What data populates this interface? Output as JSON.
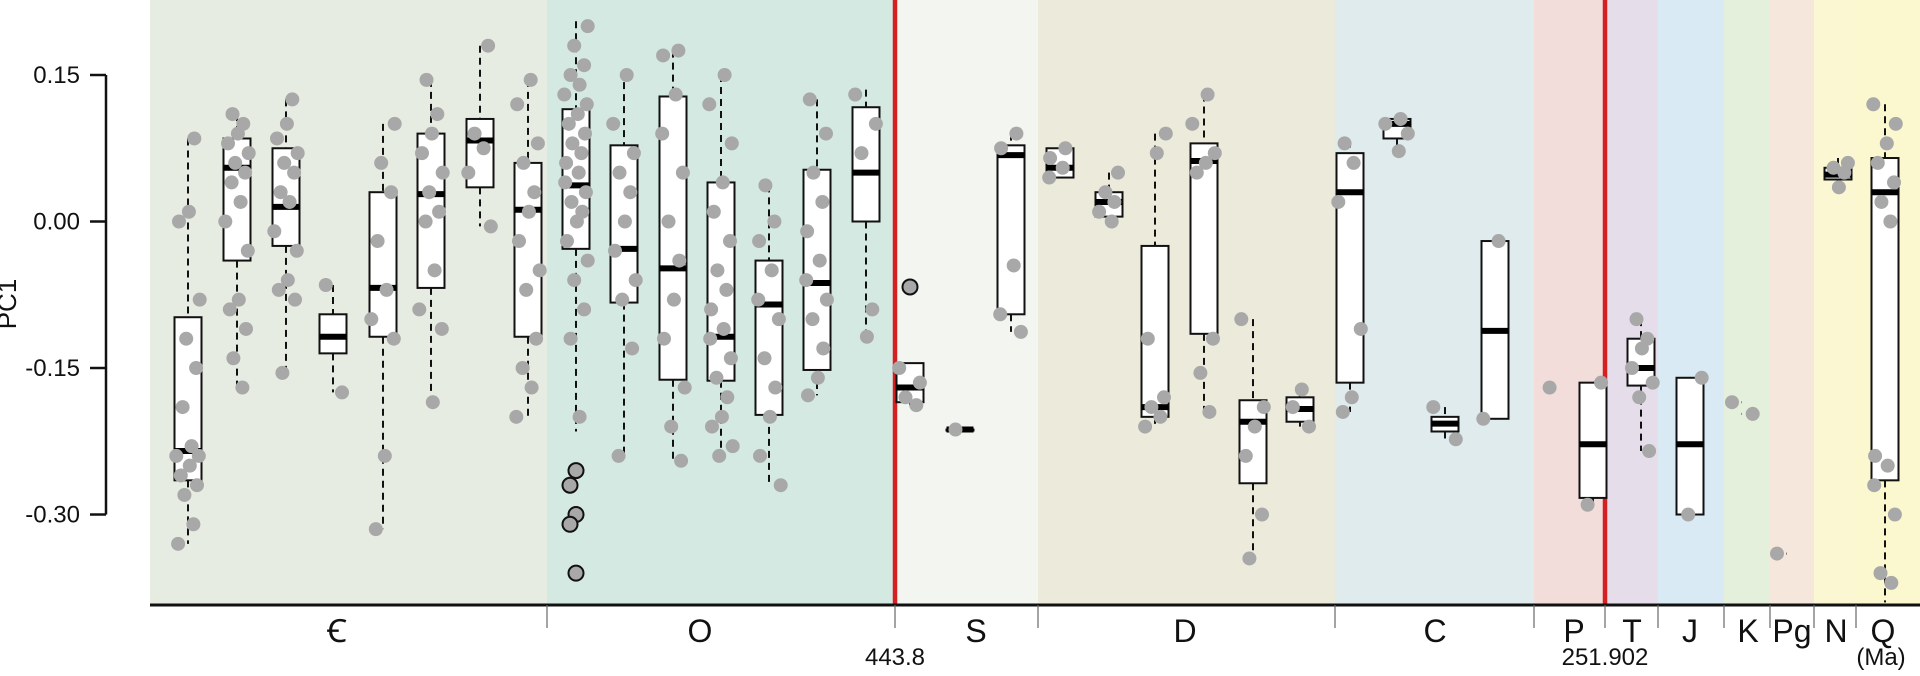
{
  "chart_data": {
    "type": "box",
    "ylabel": "PC1",
    "ylim": [
      -0.39,
      0.225
    ],
    "yticks": [
      {
        "v": 0.15,
        "label": "0.15"
      },
      {
        "v": 0.0,
        "label": "0.00"
      },
      {
        "v": -0.15,
        "label": "-0.15"
      },
      {
        "v": -0.3,
        "label": "-0.30"
      }
    ],
    "time_axis_unit": "(Ma)",
    "periods": [
      {
        "label": "Ꞓ",
        "color": "#e7ece2"
      },
      {
        "label": "O",
        "color": "#d5e9e3"
      },
      {
        "label": "S",
        "color": "#f3f5f1"
      },
      {
        "label": "D",
        "color": "#ecebdb"
      },
      {
        "label": "C",
        "color": "#e0ebee"
      },
      {
        "label": "P",
        "color": "#f2dddb"
      },
      {
        "label": "T",
        "color": "#e5deea"
      },
      {
        "label": "J",
        "color": "#d9eaf4"
      },
      {
        "label": "K",
        "color": "#e5f0dc"
      },
      {
        "label": "Pg",
        "color": "#f6e7dc"
      },
      {
        "label": "N",
        "color": "#fbf7d2"
      },
      {
        "label": "Q",
        "color": "#fbf7cf"
      }
    ],
    "boundaries": [
      {
        "label": "443.8",
        "after": "O",
        "color": "#d42020"
      },
      {
        "label": "251.902",
        "after": "P",
        "color": "#d42020"
      }
    ],
    "boxes": [
      {
        "whisker": [
          -0.33,
          0.085
        ],
        "q1": -0.265,
        "median": -0.235,
        "q3": -0.098,
        "points": [
          -0.33,
          -0.31,
          -0.28,
          -0.27,
          -0.26,
          -0.25,
          -0.24,
          -0.24,
          -0.23,
          -0.19,
          -0.15,
          -0.12,
          -0.08,
          0.0,
          0.01,
          0.085
        ]
      },
      {
        "whisker": [
          -0.17,
          0.11
        ],
        "q1": -0.04,
        "median": 0.055,
        "q3": 0.085,
        "points": [
          -0.17,
          -0.14,
          -0.11,
          -0.09,
          -0.08,
          -0.03,
          0.0,
          0.02,
          0.04,
          0.05,
          0.06,
          0.07,
          0.08,
          0.09,
          0.1,
          0.11
        ]
      },
      {
        "whisker": [
          -0.155,
          0.125
        ],
        "q1": -0.025,
        "median": 0.015,
        "q3": 0.075,
        "points": [
          -0.155,
          -0.08,
          -0.07,
          -0.06,
          -0.03,
          -0.01,
          0.02,
          0.03,
          0.05,
          0.06,
          0.07,
          0.085,
          0.1,
          0.125
        ]
      },
      {
        "whisker": [
          -0.175,
          -0.065
        ],
        "q1": -0.135,
        "median": -0.118,
        "q3": -0.095,
        "points": [
          -0.175,
          -0.065
        ]
      },
      {
        "whisker": [
          -0.315,
          0.1
        ],
        "q1": -0.118,
        "median": -0.068,
        "q3": 0.03,
        "points": [
          -0.315,
          -0.24,
          -0.12,
          -0.1,
          -0.07,
          -0.02,
          0.03,
          0.06,
          0.1
        ]
      },
      {
        "whisker": [
          -0.185,
          0.145
        ],
        "q1": -0.068,
        "median": 0.028,
        "q3": 0.09,
        "points": [
          -0.185,
          -0.11,
          -0.09,
          -0.05,
          0.0,
          0.01,
          0.03,
          0.05,
          0.07,
          0.09,
          0.11,
          0.145
        ]
      },
      {
        "whisker": [
          -0.005,
          0.18
        ],
        "q1": 0.035,
        "median": 0.083,
        "q3": 0.105,
        "points": [
          -0.005,
          0.05,
          0.075,
          0.09,
          0.18
        ]
      },
      {
        "whisker": [
          -0.2,
          0.145
        ],
        "q1": -0.118,
        "median": 0.012,
        "q3": 0.06,
        "points": [
          -0.2,
          -0.17,
          -0.15,
          -0.12,
          -0.07,
          -0.05,
          -0.02,
          0.01,
          0.03,
          0.06,
          0.08,
          0.12,
          0.145
        ]
      },
      {
        "whisker": [
          -0.215,
          0.205
        ],
        "q1": -0.028,
        "median": 0.037,
        "q3": 0.115,
        "points": [
          -0.2,
          -0.12,
          -0.09,
          -0.06,
          -0.04,
          -0.02,
          0.0,
          0.01,
          0.02,
          0.03,
          0.04,
          0.05,
          0.06,
          0.07,
          0.08,
          0.09,
          0.1,
          0.11,
          0.12,
          0.13,
          0.14,
          0.15,
          0.16,
          0.18,
          0.2
        ],
        "outliers": [
          -0.255,
          -0.27,
          -0.3,
          -0.31,
          -0.36
        ]
      },
      {
        "whisker": [
          -0.24,
          0.155
        ],
        "q1": -0.083,
        "median": -0.028,
        "q3": 0.078,
        "points": [
          -0.24,
          -0.13,
          -0.08,
          -0.06,
          -0.03,
          0.0,
          0.03,
          0.05,
          0.07,
          0.1,
          0.15
        ]
      },
      {
        "whisker": [
          -0.245,
          0.175
        ],
        "q1": -0.162,
        "median": -0.048,
        "q3": 0.128,
        "points": [
          -0.245,
          -0.21,
          -0.17,
          -0.12,
          -0.08,
          -0.04,
          0.0,
          0.05,
          0.09,
          0.13,
          0.17,
          0.175
        ]
      },
      {
        "whisker": [
          -0.24,
          0.15
        ],
        "q1": -0.163,
        "median": -0.118,
        "q3": 0.04,
        "points": [
          -0.24,
          -0.23,
          -0.21,
          -0.2,
          -0.18,
          -0.16,
          -0.14,
          -0.12,
          -0.11,
          -0.09,
          -0.07,
          -0.05,
          -0.02,
          0.01,
          0.04,
          0.08,
          0.12,
          0.15
        ]
      },
      {
        "whisker": [
          -0.27,
          0.037
        ],
        "q1": -0.198,
        "median": -0.085,
        "q3": -0.04,
        "points": [
          -0.27,
          -0.24,
          -0.2,
          -0.17,
          -0.14,
          -0.1,
          -0.08,
          -0.05,
          -0.02,
          0.0,
          0.037
        ]
      },
      {
        "whisker": [
          -0.178,
          0.125
        ],
        "q1": -0.152,
        "median": -0.063,
        "q3": 0.053,
        "points": [
          -0.178,
          -0.16,
          -0.13,
          -0.1,
          -0.08,
          -0.06,
          -0.04,
          -0.01,
          0.02,
          0.05,
          0.09,
          0.125
        ]
      },
      {
        "whisker": [
          -0.118,
          0.135
        ],
        "q1": 0.0,
        "median": 0.05,
        "q3": 0.117,
        "points": [
          -0.118,
          -0.09,
          0.07,
          0.1,
          0.13
        ]
      },
      {
        "whisker": [
          -0.188,
          -0.145
        ],
        "q1": -0.185,
        "median": -0.17,
        "q3": -0.145,
        "points": [
          -0.188,
          -0.18,
          -0.165,
          -0.15
        ],
        "outliers": [
          -0.067
        ]
      },
      {
        "whisker": [
          -0.213,
          -0.213
        ],
        "q1": -0.213,
        "median": -0.213,
        "q3": -0.213,
        "points": [
          -0.213
        ]
      },
      {
        "whisker": [
          -0.113,
          0.09
        ],
        "q1": -0.095,
        "median": 0.068,
        "q3": 0.078,
        "points": [
          -0.113,
          -0.095,
          -0.045,
          0.075,
          0.09
        ]
      },
      {
        "whisker": [
          0.045,
          0.075
        ],
        "q1": 0.045,
        "median": 0.055,
        "q3": 0.075,
        "points": [
          0.045,
          0.055,
          0.065,
          0.075
        ]
      },
      {
        "whisker": [
          0.0,
          0.05
        ],
        "q1": 0.005,
        "median": 0.02,
        "q3": 0.03,
        "points": [
          0.0,
          0.01,
          0.02,
          0.03,
          0.05
        ]
      },
      {
        "whisker": [
          -0.21,
          0.09
        ],
        "q1": -0.2,
        "median": -0.19,
        "q3": -0.025,
        "points": [
          -0.21,
          -0.2,
          -0.19,
          -0.18,
          -0.12,
          0.07,
          0.09
        ]
      },
      {
        "whisker": [
          -0.195,
          0.13
        ],
        "q1": -0.115,
        "median": 0.062,
        "q3": 0.08,
        "points": [
          -0.195,
          -0.155,
          -0.12,
          0.05,
          0.06,
          0.07,
          0.1,
          0.13
        ]
      },
      {
        "whisker": [
          -0.345,
          -0.1
        ],
        "q1": -0.268,
        "median": -0.205,
        "q3": -0.183,
        "points": [
          -0.345,
          -0.3,
          -0.24,
          -0.21,
          -0.19,
          -0.1
        ]
      },
      {
        "whisker": [
          -0.21,
          -0.172
        ],
        "q1": -0.205,
        "median": -0.192,
        "q3": -0.18,
        "points": [
          -0.21,
          -0.19,
          -0.172
        ]
      },
      {
        "whisker": [
          -0.195,
          0.083
        ],
        "q1": -0.165,
        "median": 0.03,
        "q3": 0.07,
        "points": [
          -0.195,
          -0.18,
          -0.11,
          0.02,
          0.06,
          0.08
        ]
      },
      {
        "whisker": [
          0.072,
          0.105
        ],
        "q1": 0.085,
        "median": 0.1,
        "q3": 0.105,
        "points": [
          0.072,
          0.09,
          0.1,
          0.105
        ]
      },
      {
        "whisker": [
          -0.223,
          -0.19
        ],
        "q1": -0.215,
        "median": -0.207,
        "q3": -0.2,
        "points": [
          -0.223,
          -0.19
        ]
      },
      {
        "whisker": [
          -0.202,
          -0.02
        ],
        "q1": -0.202,
        "median": -0.112,
        "q3": -0.02,
        "points": [
          -0.202,
          -0.02
        ]
      },
      {
        "whisker": [
          -0.17,
          -0.17
        ],
        "q1": -0.17,
        "median": -0.17,
        "q3": -0.17,
        "points": [
          -0.17
        ],
        "no_box": true
      },
      {
        "whisker": [
          -0.29,
          -0.165
        ],
        "q1": -0.283,
        "median": -0.228,
        "q3": -0.165,
        "points": [
          -0.29,
          -0.165
        ]
      },
      {
        "whisker": [
          -0.235,
          -0.1
        ],
        "q1": -0.168,
        "median": -0.15,
        "q3": -0.12,
        "points": [
          -0.235,
          -0.18,
          -0.165,
          -0.15,
          -0.13,
          -0.12,
          -0.1
        ]
      },
      {
        "whisker": [
          -0.3,
          -0.16
        ],
        "q1": -0.3,
        "median": -0.228,
        "q3": -0.16,
        "points": [
          -0.3,
          -0.16
        ]
      },
      {
        "whisker": [
          -0.197,
          -0.185
        ],
        "q1": -0.197,
        "median": -0.19,
        "q3": -0.185,
        "points": [
          -0.197,
          -0.185
        ],
        "no_box": true
      },
      {
        "whisker": [
          -0.34,
          -0.34
        ],
        "q1": -0.34,
        "median": -0.34,
        "q3": -0.34,
        "points": [
          -0.34
        ],
        "no_box": true
      },
      {
        "whisker": [
          0.035,
          0.065
        ],
        "q1": 0.043,
        "median": 0.048,
        "q3": 0.055,
        "points": [
          0.035,
          0.05,
          0.055,
          0.06
        ]
      },
      {
        "whisker": [
          -0.39,
          0.12
        ],
        "q1": -0.265,
        "median": 0.03,
        "q3": 0.065,
        "points": [
          -0.37,
          -0.36,
          -0.3,
          -0.27,
          -0.25,
          -0.24,
          0.0,
          0.02,
          0.04,
          0.06,
          0.08,
          0.1,
          0.12
        ]
      }
    ]
  }
}
